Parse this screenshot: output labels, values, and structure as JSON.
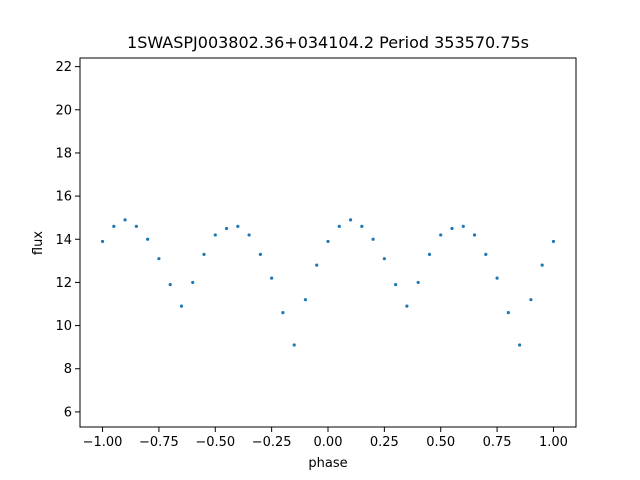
{
  "chart_data": {
    "type": "scatter",
    "title": "1SWASPJ003802.36+034104.2 Period 353570.75s",
    "xlabel": "phase",
    "ylabel": "flux",
    "xlim": [
      -1.1,
      1.1
    ],
    "ylim": [
      5.3,
      22.4
    ],
    "x_ticks": [
      -1.0,
      -0.75,
      -0.5,
      -0.25,
      0.0,
      0.25,
      0.5,
      0.75,
      1.0
    ],
    "x_tick_labels": [
      "−1.00",
      "−0.75",
      "−0.50",
      "−0.25",
      "0.00",
      "0.25",
      "0.50",
      "0.75",
      "1.00"
    ],
    "y_ticks": [
      6,
      8,
      10,
      12,
      14,
      16,
      18,
      20,
      22
    ],
    "y_tick_labels": [
      "6",
      "8",
      "10",
      "12",
      "14",
      "16",
      "18",
      "20",
      "22"
    ],
    "grid": false,
    "legend": "none",
    "marker_color": "#1f77b4",
    "series": [
      {
        "x": [
          -1.0,
          -0.95,
          -0.9,
          -0.85,
          -0.8,
          -0.75,
          -0.7,
          -0.65,
          -0.6,
          -0.55,
          -0.5,
          -0.45,
          -0.4,
          -0.35,
          -0.3,
          -0.25,
          -0.2,
          -0.15,
          -0.1,
          -0.05,
          0.0,
          0.05,
          0.1,
          0.15,
          0.2,
          0.25,
          0.3,
          0.35,
          0.4,
          0.45,
          0.5,
          0.55,
          0.6,
          0.65,
          0.7,
          0.75,
          0.8,
          0.85,
          0.9,
          0.95,
          1.0
        ],
        "y": [
          13.9,
          14.6,
          14.9,
          14.6,
          14.0,
          13.1,
          11.9,
          10.9,
          12.0,
          13.3,
          14.2,
          14.5,
          14.6,
          14.2,
          13.3,
          12.2,
          10.6,
          9.1,
          11.2,
          12.8,
          13.9,
          14.6,
          14.9,
          14.6,
          14.0,
          13.1,
          11.9,
          10.9,
          12.0,
          13.3,
          14.2,
          14.5,
          14.6,
          14.2,
          13.3,
          12.2,
          10.6,
          9.1,
          11.2,
          12.8,
          13.9
        ]
      }
    ]
  }
}
